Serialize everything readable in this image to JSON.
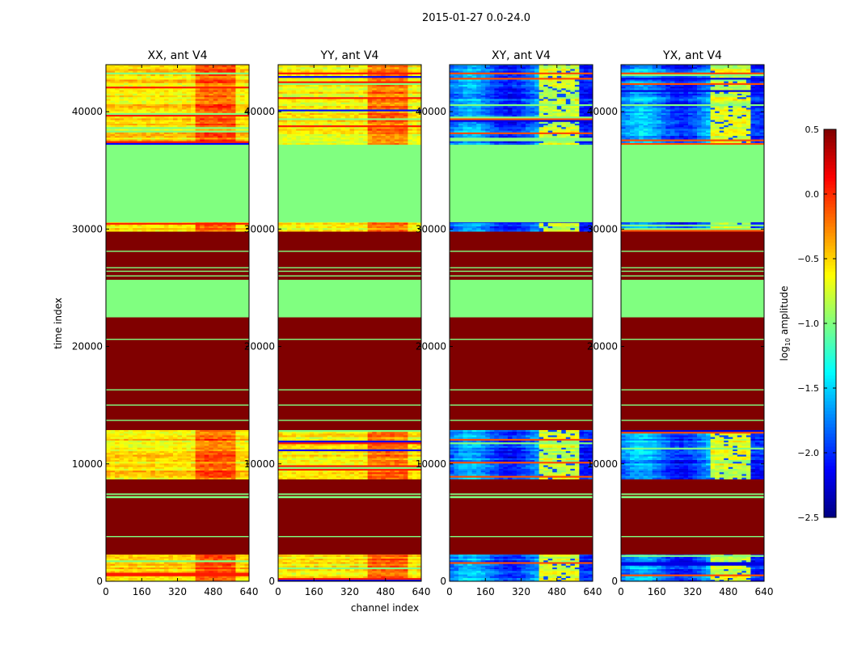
{
  "chart_data": {
    "type": "heatmap",
    "title": "2015-01-27 0.0-24.0",
    "xlabel": "channel index",
    "ylabel": "time index",
    "xlim": [
      0,
      640
    ],
    "ylim": [
      0,
      44000
    ],
    "xticks": [
      "0",
      "160",
      "320",
      "480",
      "640"
    ],
    "yticks": [
      "0",
      "10000",
      "20000",
      "30000",
      "40000"
    ],
    "panels": [
      {
        "title": "XX, ant V4",
        "active_level": -0.55,
        "band_level": -0.15,
        "band_channels": [
          400,
          580
        ]
      },
      {
        "title": "YY, ant V4",
        "active_level": -0.6,
        "band_level": -0.2,
        "band_channels": [
          400,
          580
        ]
      },
      {
        "title": "XY, ant V4",
        "active_level": -1.8,
        "band_level": -0.75,
        "band_channels": [
          400,
          580
        ]
      },
      {
        "title": "YX, ant V4",
        "active_level": -1.8,
        "band_level": -0.75,
        "band_channels": [
          400,
          580
        ]
      }
    ],
    "time_bands": [
      {
        "t0": 0,
        "t1": 2300,
        "kind": "active"
      },
      {
        "t0": 2300,
        "t1": 6700,
        "kind": "flagged"
      },
      {
        "t0": 6700,
        "t1": 7100,
        "kind": "flagged"
      },
      {
        "t0": 7100,
        "t1": 7500,
        "kind": "zero"
      },
      {
        "t0": 7500,
        "t1": 8700,
        "kind": "flagged"
      },
      {
        "t0": 8700,
        "t1": 12900,
        "kind": "active"
      },
      {
        "t0": 12900,
        "t1": 22500,
        "kind": "flagged"
      },
      {
        "t0": 22500,
        "t1": 25700,
        "kind": "zero"
      },
      {
        "t0": 25700,
        "t1": 29800,
        "kind": "flagged"
      },
      {
        "t0": 29800,
        "t1": 30600,
        "kind": "active"
      },
      {
        "t0": 30600,
        "t1": 37200,
        "kind": "zero"
      },
      {
        "t0": 37200,
        "t1": 44000,
        "kind": "active"
      }
    ],
    "thin_lines": [
      3800,
      7300,
      13700,
      15000,
      16300,
      20600,
      26000,
      26400,
      26700,
      28100
    ],
    "colorbar": {
      "label": "log10 amplitude",
      "label_main": "log",
      "label_sub": "10",
      "label_rest": " amplitude",
      "range": [
        -2.5,
        0.5
      ],
      "ticks": [
        "0.5",
        "0.0",
        "−0.5",
        "−1.0",
        "−1.5",
        "−2.0",
        "−2.5"
      ],
      "tick_values": [
        0.5,
        0.0,
        -0.5,
        -1.0,
        -1.5,
        -2.0,
        -2.5
      ],
      "colormap": "jet"
    }
  }
}
